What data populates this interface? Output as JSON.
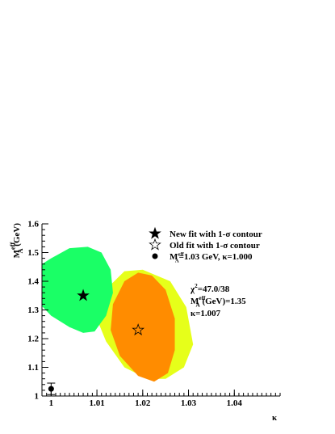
{
  "chart_data": {
    "type": "contour-fit",
    "x_label": "κ",
    "y_label": [
      {
        "t": "M"
      },
      {
        "t": "eff",
        "sup": true
      },
      {
        "t": "A",
        "sub": true
      },
      {
        "t": " (GeV)"
      }
    ],
    "xlim": [
      0.998,
      1.05
    ],
    "ylim": [
      1,
      1.6
    ],
    "xticks": [
      1,
      1.01,
      1.02,
      1.03,
      1.04
    ],
    "yticks": [
      1,
      1.1,
      1.2,
      1.3,
      1.4,
      1.5,
      1.6
    ],
    "contours": [
      {
        "color": "#e6ff1a",
        "x": [
          1.0125,
          1.016,
          1.02,
          1.026,
          1.0295,
          1.031,
          1.029,
          1.025,
          1.021,
          1.016,
          1.012,
          1.0097,
          1.0105
        ],
        "y": [
          1.38,
          1.435,
          1.44,
          1.4,
          1.31,
          1.18,
          1.1,
          1.06,
          1.06,
          1.1,
          1.19,
          1.28,
          1.34
        ]
      },
      {
        "color": "#1aff66",
        "x": [
          0.996,
          1.0,
          1.004,
          1.008,
          1.011,
          1.013,
          1.0135,
          1.012,
          1.0095,
          1.007,
          1.004,
          1.0,
          0.997
        ],
        "y": [
          1.44,
          1.48,
          1.515,
          1.52,
          1.5,
          1.44,
          1.36,
          1.28,
          1.225,
          1.22,
          1.24,
          1.28,
          1.33
        ]
      },
      {
        "color": "#ff8c00",
        "x": [
          1.0135,
          1.016,
          1.019,
          1.022,
          1.025,
          1.027,
          1.027,
          1.0255,
          1.0225,
          1.019,
          1.015,
          1.013
        ],
        "y": [
          1.32,
          1.4,
          1.43,
          1.42,
          1.37,
          1.27,
          1.16,
          1.08,
          1.05,
          1.07,
          1.14,
          1.23
        ]
      }
    ],
    "series": [
      {
        "name": "New fit with 1-σ contour",
        "marker": "star-filled",
        "x": [
          1.007
        ],
        "values": [
          1.35
        ]
      },
      {
        "name": "Old fit with 1-σ contour",
        "marker": "star-open",
        "x": [
          1.019
        ],
        "values": [
          1.23
        ]
      },
      {
        "name": [
          {
            "t": "M"
          },
          {
            "t": "eff",
            "sup": true
          },
          {
            "t": "A",
            "sub": true
          },
          {
            "t": "=1.03 GeV, κ=1.000"
          }
        ],
        "marker": "dot",
        "x": [
          1
        ],
        "values": [
          1.025
        ],
        "errors": [
          0.02
        ]
      }
    ],
    "annotations": [
      [
        {
          "t": "χ"
        },
        {
          "t": "2",
          "sup": true
        },
        {
          "t": "=47.0/38"
        }
      ],
      [
        {
          "t": "M"
        },
        {
          "t": "eff",
          "sup": true
        },
        {
          "t": "A",
          "sub": true
        },
        {
          "t": " (GeV)=1.35"
        }
      ],
      [
        {
          "t": "κ=1.007"
        }
      ]
    ]
  }
}
